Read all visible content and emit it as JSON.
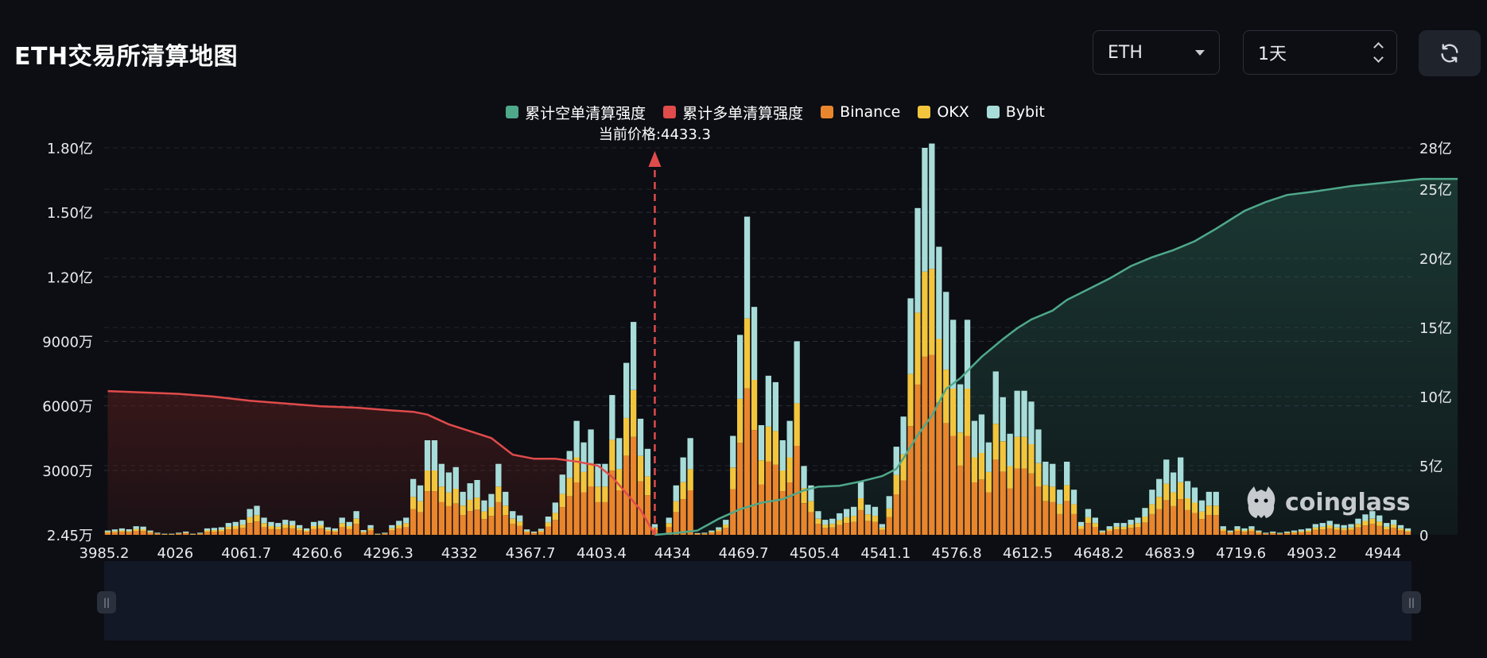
{
  "page": {
    "title": "ETH交易所清算地图",
    "symbol_select": {
      "value": "ETH"
    },
    "range_select": {
      "value": "1天"
    },
    "refresh_icon": "refresh-icon",
    "watermark": "coinglass"
  },
  "colors": {
    "short_cum": "#4fa88a",
    "long_cum": "#e04b4b",
    "binance": "#e9852c",
    "okx": "#f2c53d",
    "bybit": "#a8dcd9",
    "price_marker": "#e04b4b"
  },
  "chart_data": {
    "type": "bar",
    "legend": [
      "累计空单清算强度",
      "累计多单清算强度",
      "Binance",
      "OKX",
      "Bybit"
    ],
    "current_price_label": "当前价格:4433.3",
    "current_price_index": 77,
    "x_tick_labels": [
      "3985.2",
      "4026",
      "4061.7",
      "4260.6",
      "4296.3",
      "4332",
      "4367.7",
      "4403.4",
      "4434",
      "4469.7",
      "4505.4",
      "4541.1",
      "4576.8",
      "4612.5",
      "4648.2",
      "4683.9",
      "4719.6",
      "4903.2",
      "4944"
    ],
    "x_tick_indices": [
      0,
      10,
      20,
      30,
      40,
      50,
      60,
      70,
      80,
      90,
      100,
      110,
      120,
      130,
      140,
      150,
      160,
      170,
      180
    ],
    "y_left_tick_labels": [
      "2.45万",
      "3000万",
      "6000万",
      "9000万",
      "1.20亿",
      "1.50亿",
      "1.80亿"
    ],
    "y_left_tick_values": [
      0,
      30000000,
      60000000,
      90000000,
      120000000,
      150000000,
      180000000
    ],
    "y_left_range": [
      0,
      180000000
    ],
    "y_right_tick_labels": [
      "0",
      "5亿",
      "10亿",
      "15亿",
      "20亿",
      "25亿",
      "28亿"
    ],
    "y_right_tick_values": [
      0,
      500000000,
      1000000000,
      1500000000,
      2000000000,
      2500000000,
      2800000000
    ],
    "y_right_range": [
      0,
      2800000000
    ],
    "bar_totals": [
      2.0,
      2.5,
      3.0,
      2.6,
      4.0,
      3.8,
      2.0,
      1.0,
      0.5,
      0.5,
      1.0,
      1.5,
      0.5,
      1.0,
      3.0,
      3.2,
      3.5,
      5.5,
      6.0,
      7.0,
      12.0,
      13.5,
      8.0,
      6.0,
      5.5,
      7.0,
      6.5,
      4.5,
      3.0,
      6.0,
      6.5,
      3.5,
      3.0,
      8.0,
      6.0,
      11.0,
      2.2,
      4.5,
      0.5,
      1.0,
      4.5,
      6.5,
      8.0,
      26.0,
      23.0,
      44.0,
      44.0,
      33.0,
      29.0,
      31.5,
      20.0,
      24.0,
      25.5,
      16.0,
      19.0,
      33.0,
      20.0,
      11.0,
      9.0,
      2.5,
      1.5,
      2.8,
      8.5,
      15.0,
      28.0,
      39.0,
      53.0,
      43.0,
      49.0,
      33.0,
      33.0,
      65.0,
      45.0,
      80.0,
      99.0,
      54.0,
      40.0,
      5.0,
      0.5,
      8.0,
      23.0,
      36.0,
      45.0,
      0.8,
      1.0,
      2.0,
      3.5,
      7.0,
      46.0,
      93.0,
      148.0,
      106.0,
      51.0,
      74.0,
      71.0,
      44.0,
      53.0,
      90.0,
      32.0,
      23.0,
      11.0,
      7.0,
      7.5,
      10.0,
      12.0,
      13.0,
      25.0,
      14.0,
      13.0,
      5.0,
      18.0,
      41.0,
      55.0,
      110.0,
      152.0,
      180.0,
      182.0,
      134.0,
      113.0,
      100.0,
      70.0,
      100.0,
      53.0,
      56.0,
      43.0,
      76.0,
      64.0,
      47.0,
      67.0,
      67.0,
      62.0,
      49.0,
      34.0,
      33.0,
      21.0,
      34.0,
      21.0,
      6.0,
      12.0,
      8.0,
      2.0,
      4.0,
      5.5,
      5.5,
      7.0,
      8.0,
      12.5,
      21.0,
      26.0,
      35.0,
      29.0,
      36.0,
      25.0,
      22.0,
      16.0,
      20.0,
      20.0,
      4.0,
      2.0,
      4.0,
      3.0,
      4.0,
      2.0,
      1.0,
      1.5,
      1.0,
      1.5,
      2.0,
      2.5,
      3.0,
      5.0,
      5.5,
      6.5,
      5.0,
      4.5,
      5.0,
      7.5,
      9.5,
      11.0,
      9.0,
      5.5,
      7.0,
      4.5,
      3.0
    ],
    "bar_totals_unit": "百万",
    "short_cum_curve": [
      [
        77,
        0
      ],
      [
        80,
        0.5
      ],
      [
        83,
        1.2
      ],
      [
        86,
        4.5
      ],
      [
        89,
        7.2
      ],
      [
        92,
        9.0
      ],
      [
        95,
        10.0
      ],
      [
        98,
        12.5
      ],
      [
        100,
        13.5
      ],
      [
        103,
        13.8
      ],
      [
        106,
        15.0
      ],
      [
        109,
        16.5
      ],
      [
        111,
        18.5
      ],
      [
        112,
        21.5
      ],
      [
        114,
        28.0
      ],
      [
        116,
        33.5
      ],
      [
        118,
        41.0
      ],
      [
        120,
        44.0
      ],
      [
        123,
        50.0
      ],
      [
        126,
        55.0
      ],
      [
        128,
        58.0
      ],
      [
        130,
        60.5
      ],
      [
        133,
        63.0
      ],
      [
        135,
        66.0
      ],
      [
        138,
        69.0
      ],
      [
        141,
        72.0
      ],
      [
        144,
        75.5
      ],
      [
        147,
        78.0
      ],
      [
        150,
        80.0
      ],
      [
        153,
        82.5
      ],
      [
        156,
        86.0
      ],
      [
        160,
        91.0
      ],
      [
        163,
        93.5
      ],
      [
        166,
        95.5
      ],
      [
        170,
        96.5
      ],
      [
        175,
        98.0
      ],
      [
        180,
        99.0
      ],
      [
        185,
        100.0
      ],
      [
        188,
        100.0
      ],
      [
        190,
        100.0
      ]
    ],
    "long_cum_curve": [
      [
        0,
        10.4
      ],
      [
        5,
        10.3
      ],
      [
        10,
        10.2
      ],
      [
        15,
        10.0
      ],
      [
        20,
        9.7
      ],
      [
        25,
        9.5
      ],
      [
        30,
        9.3
      ],
      [
        35,
        9.2
      ],
      [
        40,
        9.0
      ],
      [
        43,
        8.9
      ],
      [
        45,
        8.7
      ],
      [
        48,
        8.0
      ],
      [
        51,
        7.5
      ],
      [
        54,
        7.0
      ],
      [
        57,
        5.8
      ],
      [
        60,
        5.5
      ],
      [
        63,
        5.5
      ],
      [
        66,
        5.3
      ],
      [
        69,
        5.0
      ],
      [
        71,
        4.2
      ],
      [
        73,
        3.0
      ],
      [
        75,
        1.8
      ],
      [
        77,
        0.0
      ]
    ],
    "long_cum_scale": "亿"
  }
}
